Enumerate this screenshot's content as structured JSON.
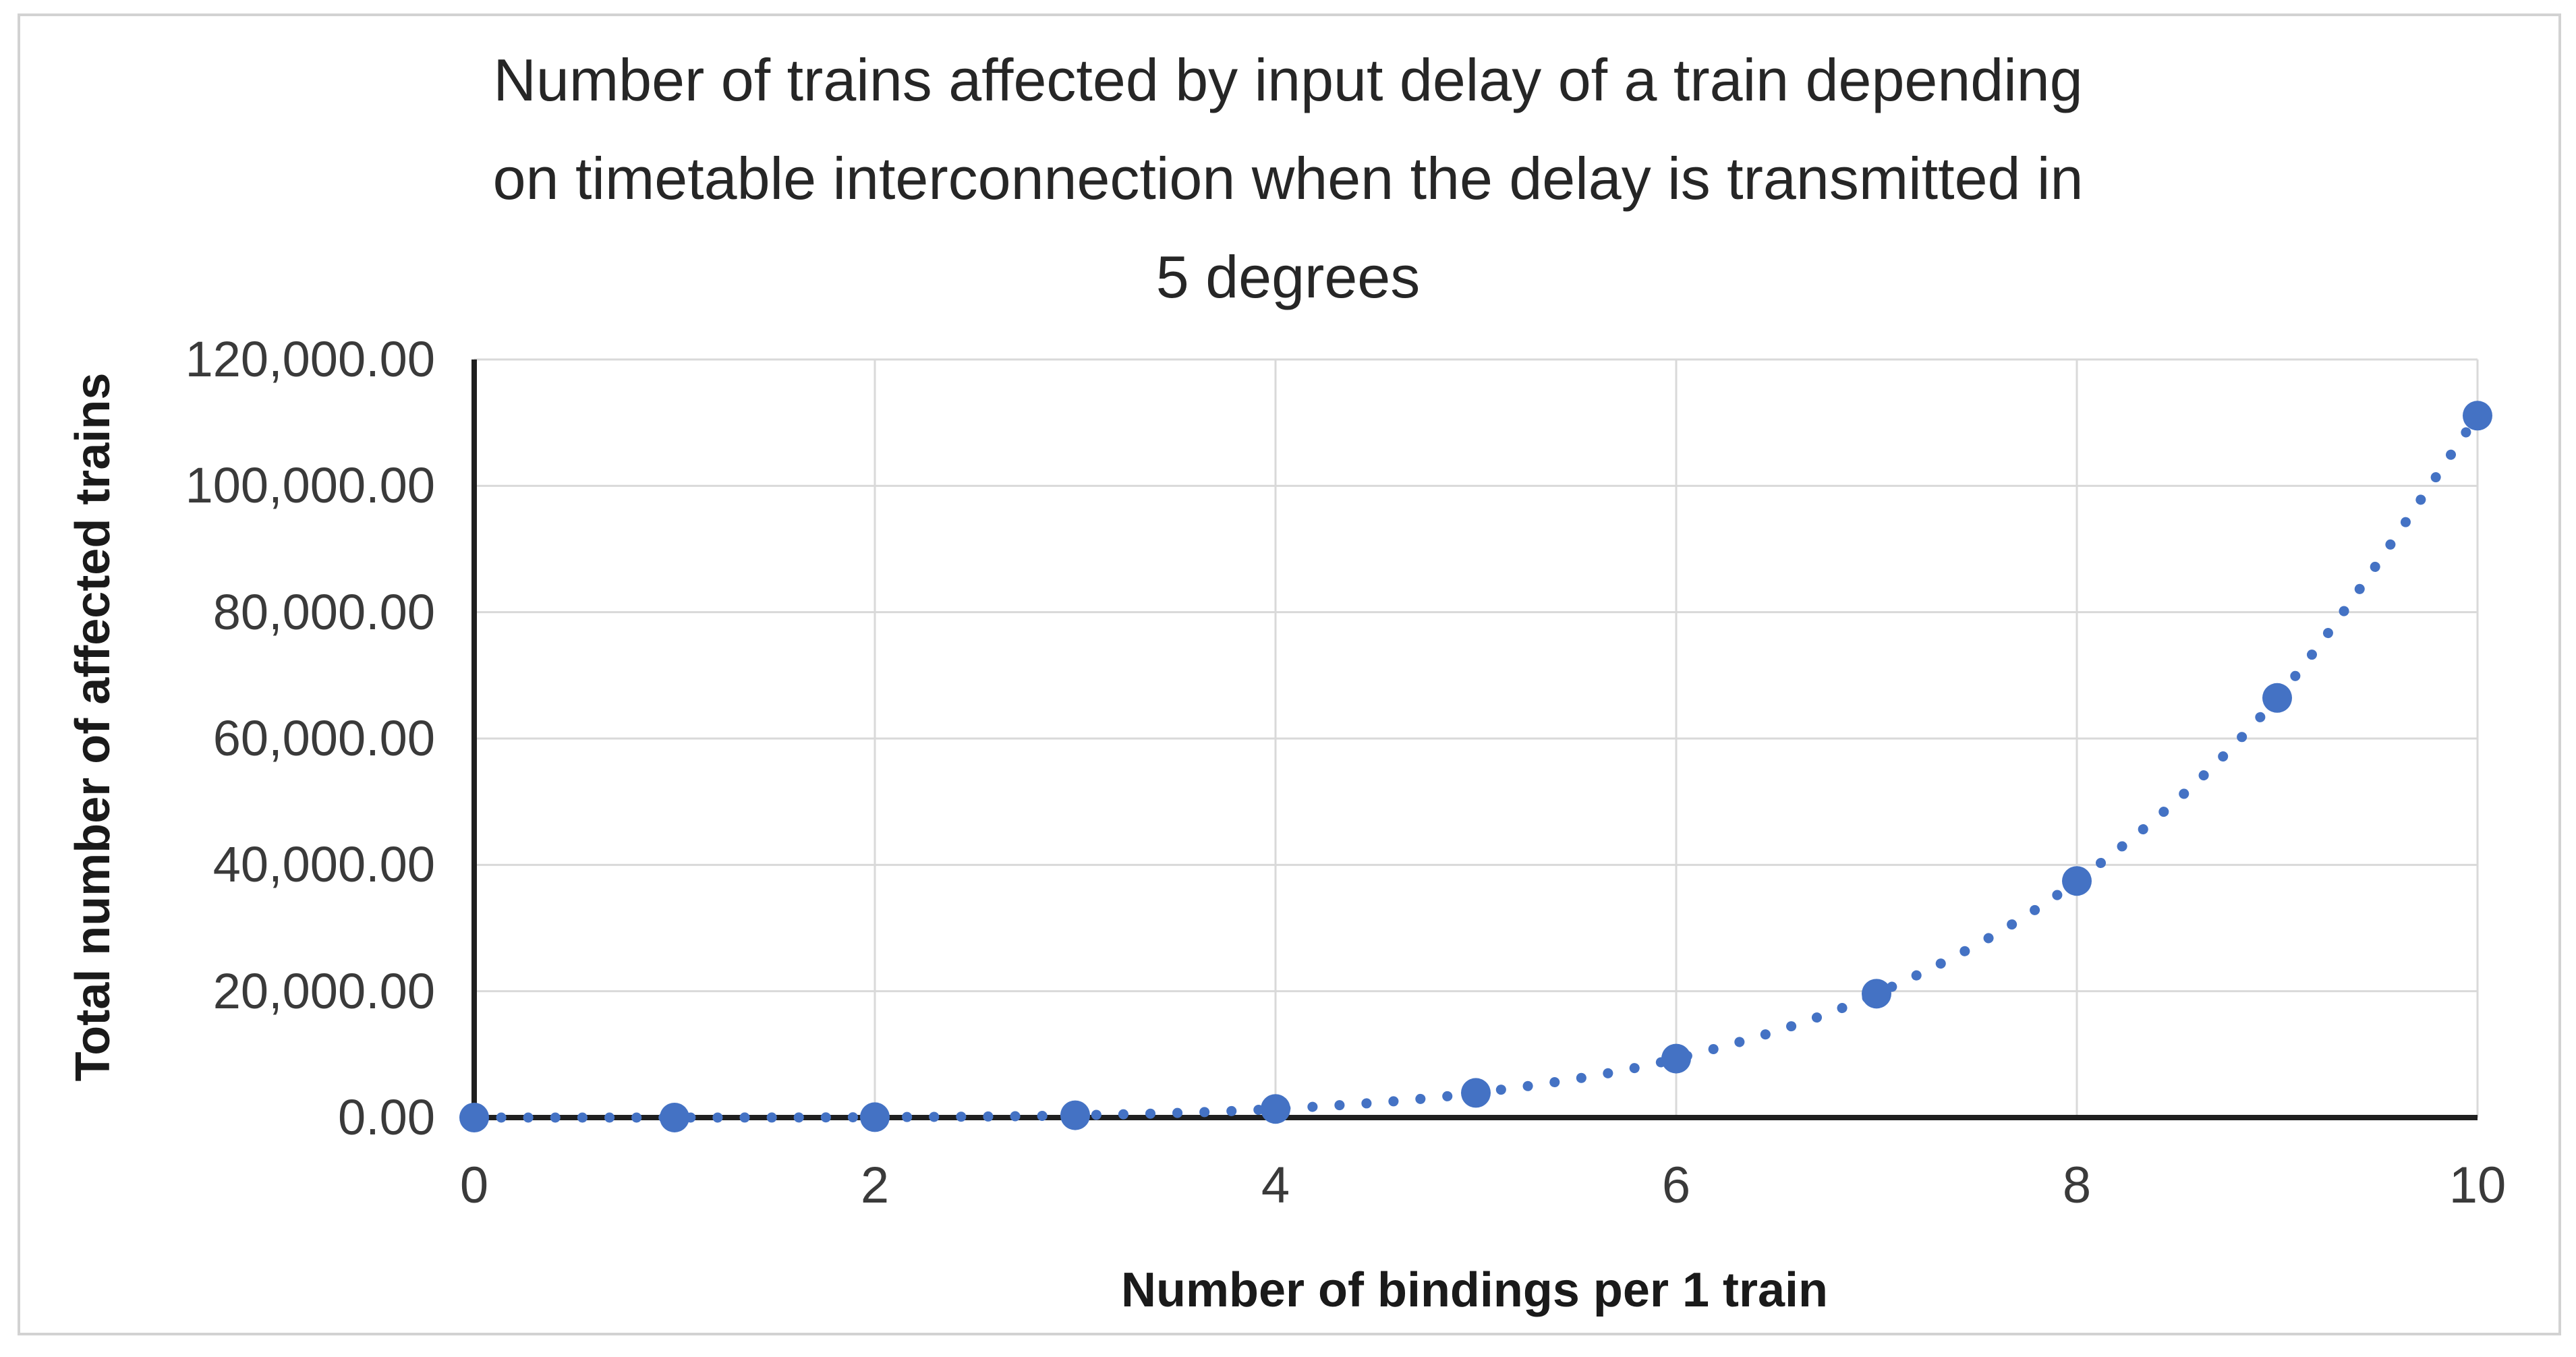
{
  "chart_data": {
    "type": "scatter",
    "title": "Number of trains affected by input delay of a train depending on timetable interconnection when the delay is transmitted in 5 degrees",
    "title_lines": [
      "Number of trains affected by input delay of a train depending",
      "on timetable interconnection when the delay is transmitted in",
      "5 degrees"
    ],
    "xlabel": "Number of bindings per 1 train",
    "ylabel": "Total number of affected trains",
    "x": [
      0,
      1,
      2,
      3,
      4,
      5,
      6,
      7,
      8,
      9,
      10
    ],
    "values": [
      0,
      5,
      62,
      363,
      1364,
      3905,
      9330,
      19607,
      37448,
      66429,
      111110
    ],
    "series_name": "Total number of affected trains",
    "xlim": [
      0,
      10
    ],
    "ylim": [
      0,
      120000
    ],
    "x_ticks": [
      0,
      2,
      4,
      6,
      8,
      10
    ],
    "y_ticks": [
      {
        "value": 0,
        "label": "0.00"
      },
      {
        "value": 20000,
        "label": "20,000.00"
      },
      {
        "value": 40000,
        "label": "40,000.00"
      },
      {
        "value": 60000,
        "label": "60,000.00"
      },
      {
        "value": 80000,
        "label": "80,000.00"
      },
      {
        "value": 100000,
        "label": "100,000.00"
      },
      {
        "value": 120000,
        "label": "120,000.00"
      }
    ],
    "grid": "both",
    "legend": "none",
    "line_style": "dotted",
    "line_smooth": true,
    "marker": "circle",
    "colors": {
      "series": "#4472C4",
      "gridline": "#D9D9D9",
      "axis_line": "#1f1f1f",
      "tick_text": "#3a3a3a",
      "title_text": "#262626",
      "frame_border": "#d2d2d2",
      "background": "#ffffff"
    }
  }
}
